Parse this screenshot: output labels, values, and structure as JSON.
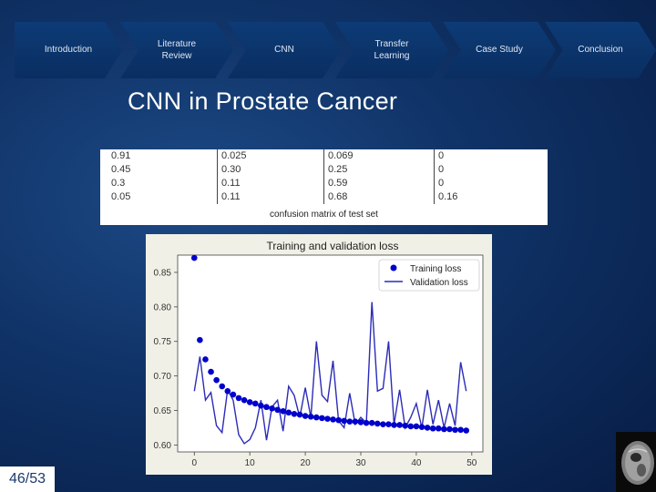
{
  "nav": {
    "items": [
      {
        "label": "Introduction"
      },
      {
        "label": "Literature\nReview"
      },
      {
        "label": "CNN"
      },
      {
        "label": "Transfer\nLearning"
      },
      {
        "label": "Case Study"
      },
      {
        "label": "Conclusion"
      }
    ]
  },
  "slide": {
    "title": "CNN in Prostate Cancer",
    "page": "46/53"
  },
  "confusion_matrix": {
    "caption": "confusion matrix of test set",
    "rows": [
      [
        "0.91",
        "0.025",
        "0.069",
        "0"
      ],
      [
        "0.45",
        "0.30",
        "0.25",
        "0"
      ],
      [
        "0.3",
        "0.11",
        "0.59",
        "0"
      ],
      [
        "0.05",
        "0.11",
        "0.68",
        "0.16"
      ]
    ]
  },
  "colors": {
    "training": "#0000cc",
    "validation": "#2b2bb8",
    "plot_bg": "#f1f0e7"
  },
  "chart_data": {
    "type": "line",
    "title": "Training and validation loss",
    "xlabel": "",
    "ylabel": "",
    "xlim": [
      -3,
      52
    ],
    "ylim": [
      0.59,
      0.875
    ],
    "xticks": [
      0,
      10,
      20,
      30,
      40,
      50
    ],
    "yticks": [
      0.6,
      0.65,
      0.7,
      0.75,
      0.8,
      0.85
    ],
    "legend": "top-right",
    "series": [
      {
        "name": "Training loss",
        "style": "dots",
        "x": [
          0,
          1,
          2,
          3,
          4,
          5,
          6,
          7,
          8,
          9,
          10,
          11,
          12,
          13,
          14,
          15,
          16,
          17,
          18,
          19,
          20,
          21,
          22,
          23,
          24,
          25,
          26,
          27,
          28,
          29,
          30,
          31,
          32,
          33,
          34,
          35,
          36,
          37,
          38,
          39,
          40,
          41,
          42,
          43,
          44,
          45,
          46,
          47,
          48,
          49
        ],
        "values": [
          0.871,
          0.752,
          0.724,
          0.706,
          0.694,
          0.685,
          0.678,
          0.673,
          0.668,
          0.665,
          0.662,
          0.66,
          0.657,
          0.655,
          0.653,
          0.651,
          0.649,
          0.647,
          0.645,
          0.644,
          0.642,
          0.641,
          0.64,
          0.639,
          0.638,
          0.637,
          0.636,
          0.635,
          0.634,
          0.634,
          0.633,
          0.632,
          0.632,
          0.631,
          0.63,
          0.63,
          0.629,
          0.629,
          0.628,
          0.627,
          0.627,
          0.626,
          0.625,
          0.624,
          0.624,
          0.623,
          0.623,
          0.622,
          0.622,
          0.621
        ]
      },
      {
        "name": "Validation loss",
        "style": "line",
        "x": [
          0,
          1,
          2,
          3,
          4,
          5,
          6,
          7,
          8,
          9,
          10,
          11,
          12,
          13,
          14,
          15,
          16,
          17,
          18,
          19,
          20,
          21,
          22,
          23,
          24,
          25,
          26,
          27,
          28,
          29,
          30,
          31,
          32,
          33,
          34,
          35,
          36,
          37,
          38,
          39,
          40,
          41,
          42,
          43,
          44,
          45,
          46,
          47,
          48,
          49
        ],
        "values": [
          0.678,
          0.728,
          0.665,
          0.676,
          0.628,
          0.618,
          0.68,
          0.665,
          0.615,
          0.602,
          0.608,
          0.625,
          0.665,
          0.607,
          0.655,
          0.665,
          0.62,
          0.685,
          0.672,
          0.64,
          0.683,
          0.64,
          0.75,
          0.672,
          0.663,
          0.722,
          0.635,
          0.625,
          0.675,
          0.63,
          0.64,
          0.632,
          0.807,
          0.678,
          0.682,
          0.75,
          0.63,
          0.68,
          0.625,
          0.64,
          0.66,
          0.625,
          0.68,
          0.63,
          0.665,
          0.625,
          0.66,
          0.628,
          0.72,
          0.678
        ]
      }
    ]
  }
}
